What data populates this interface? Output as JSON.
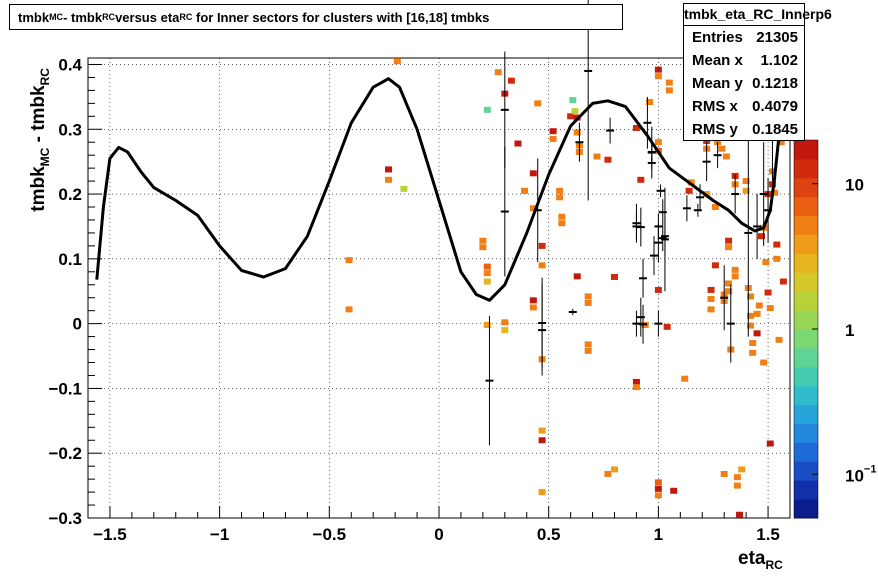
{
  "title_parts": [
    "tmbk",
    "MC",
    " - tmbk",
    "RC",
    " versus eta",
    "RC",
    " for Inner sectors for clusters with [16,18] tmbks"
  ],
  "stats": {
    "name": "tmbk_eta_RC_Innerp6",
    "rows": [
      {
        "label": "Entries",
        "value": "21305"
      },
      {
        "label": "Mean x",
        "value": "1.102"
      },
      {
        "label": "Mean y",
        "value": "0.1218"
      },
      {
        "label": "RMS x",
        "value": "0.4079"
      },
      {
        "label": "RMS y",
        "value": "0.1845"
      }
    ]
  },
  "chart_data": {
    "type": "heatmap",
    "title": "tmbk_MC - tmbk_RC versus eta_RC for Inner sectors for clusters with [16,18] tmbks",
    "xlabel": "eta_RC",
    "ylabel": "tmbk_MC - tmbk_RC",
    "xlim": [
      -1.6,
      1.6
    ],
    "ylim": [
      -0.3,
      0.41
    ],
    "x_ticks": [
      "−1.5",
      "−1",
      "−0.5",
      "0",
      "0.5",
      "1",
      "1.5"
    ],
    "x_tick_values": [
      -1.5,
      -1,
      -0.5,
      0,
      0.5,
      1,
      1.5
    ],
    "y_ticks": [
      "−0.3",
      "−0.2",
      "−0.1",
      "0",
      "0.1",
      "0.2",
      "0.3",
      "0.4"
    ],
    "y_tick_values": [
      -0.3,
      -0.2,
      -0.1,
      0,
      0.1,
      0.2,
      0.3,
      0.4
    ],
    "grid": true,
    "z_scale": "log",
    "z_range": [
      0.05,
      20
    ],
    "z_ticks": [
      {
        "label": "10",
        "value": 10
      },
      {
        "label": "1",
        "value": 1
      },
      {
        "label": "10",
        "sup": "−1",
        "value": 0.1
      }
    ],
    "palette": [
      "#0b1d8a",
      "#1230a8",
      "#1a4dc4",
      "#1e6ad6",
      "#2288dc",
      "#27a4d9",
      "#30bccb",
      "#44ccb0",
      "#5fd494",
      "#7cd873",
      "#9ad656",
      "#b8d23a",
      "#d4c82a",
      "#e6b41f",
      "#ef9c1a",
      "#f07f16",
      "#e96012",
      "#de4210",
      "#d02a0e",
      "#c0180c"
    ],
    "cells": [
      {
        "x": -0.41,
        "y": 0.098,
        "z": 6
      },
      {
        "x": -0.41,
        "y": 0.022,
        "z": 6
      },
      {
        "x": -0.23,
        "y": 0.238,
        "z": 18
      },
      {
        "x": -0.23,
        "y": 0.222,
        "z": 6
      },
      {
        "x": -0.19,
        "y": 0.405,
        "z": 6
      },
      {
        "x": -0.16,
        "y": 0.208,
        "z": 1.5
      },
      {
        "x": 0.2,
        "y": 0.128,
        "z": 6
      },
      {
        "x": 0.2,
        "y": 0.118,
        "z": 6
      },
      {
        "x": 0.22,
        "y": 0.088,
        "z": 8
      },
      {
        "x": 0.22,
        "y": 0.078,
        "z": 6
      },
      {
        "x": 0.22,
        "y": 0.065,
        "z": 3
      },
      {
        "x": 0.22,
        "y": -0.002,
        "z": 4
      },
      {
        "x": 0.22,
        "y": 0.33,
        "z": 0.6
      },
      {
        "x": 0.27,
        "y": 0.388,
        "z": 6
      },
      {
        "x": 0.3,
        "y": 0.002,
        "z": 6
      },
      {
        "x": 0.3,
        "y": -0.01,
        "z": 3
      },
      {
        "x": 0.3,
        "y": 0.355,
        "z": 15
      },
      {
        "x": 0.33,
        "y": 0.375,
        "z": 12
      },
      {
        "x": 0.36,
        "y": 0.278,
        "z": 20
      },
      {
        "x": 0.39,
        "y": 0.205,
        "z": 6
      },
      {
        "x": 0.43,
        "y": 0.232,
        "z": 15
      },
      {
        "x": 0.43,
        "y": 0.178,
        "z": 6
      },
      {
        "x": 0.43,
        "y": 0.036,
        "z": 18
      },
      {
        "x": 0.43,
        "y": 0.025,
        "z": 6
      },
      {
        "x": 0.45,
        "y": 0.34,
        "z": 6
      },
      {
        "x": 0.47,
        "y": 0.12,
        "z": 12
      },
      {
        "x": 0.47,
        "y": 0.09,
        "z": 6
      },
      {
        "x": 0.47,
        "y": -0.055,
        "z": 6
      },
      {
        "x": 0.47,
        "y": -0.18,
        "z": 15
      },
      {
        "x": 0.47,
        "y": -0.165,
        "z": 4
      },
      {
        "x": 0.47,
        "y": -0.26,
        "z": 4
      },
      {
        "x": 0.52,
        "y": 0.297,
        "z": 15
      },
      {
        "x": 0.52,
        "y": 0.285,
        "z": 6
      },
      {
        "x": 0.55,
        "y": 0.205,
        "z": 6
      },
      {
        "x": 0.55,
        "y": 0.195,
        "z": 6
      },
      {
        "x": 0.56,
        "y": 0.165,
        "z": 6
      },
      {
        "x": 0.56,
        "y": 0.155,
        "z": 6
      },
      {
        "x": 0.6,
        "y": 0.32,
        "z": 12
      },
      {
        "x": 0.61,
        "y": 0.345,
        "z": 0.6
      },
      {
        "x": 0.62,
        "y": 0.328,
        "z": 1.5
      },
      {
        "x": 0.63,
        "y": 0.295,
        "z": 6
      },
      {
        "x": 0.64,
        "y": 0.275,
        "z": 6
      },
      {
        "x": 0.64,
        "y": 0.265,
        "z": 6
      },
      {
        "x": 0.63,
        "y": 0.318,
        "z": 15
      },
      {
        "x": 0.63,
        "y": 0.073,
        "z": 18
      },
      {
        "x": 0.68,
        "y": 0.042,
        "z": 6
      },
      {
        "x": 0.68,
        "y": 0.032,
        "z": 6
      },
      {
        "x": 0.68,
        "y": -0.032,
        "z": 6
      },
      {
        "x": 0.68,
        "y": -0.042,
        "z": 6
      },
      {
        "x": 0.72,
        "y": 0.258,
        "z": 6
      },
      {
        "x": 0.77,
        "y": 0.253,
        "z": 12
      },
      {
        "x": 0.77,
        "y": -0.232,
        "z": 6
      },
      {
        "x": 0.8,
        "y": 0.072,
        "z": 12
      },
      {
        "x": 0.8,
        "y": -0.225,
        "z": 4
      },
      {
        "x": 0.9,
        "y": 0.302,
        "z": 12
      },
      {
        "x": 0.9,
        "y": -0.09,
        "z": 15
      },
      {
        "x": 0.9,
        "y": -0.098,
        "z": 6
      },
      {
        "x": 0.92,
        "y": 0.222,
        "z": 12
      },
      {
        "x": 0.94,
        "y": -0.002,
        "z": 6
      },
      {
        "x": 0.96,
        "y": 0.342,
        "z": 6
      },
      {
        "x": 1.0,
        "y": 0.392,
        "z": 15
      },
      {
        "x": 1.0,
        "y": 0.382,
        "z": 6
      },
      {
        "x": 1.0,
        "y": -0.255,
        "z": 20
      },
      {
        "x": 1.0,
        "y": -0.245,
        "z": 8
      },
      {
        "x": 1.0,
        "y": -0.265,
        "z": 6
      },
      {
        "x": 1.0,
        "y": 0.052,
        "z": 12
      },
      {
        "x": 1.0,
        "y": 0.267,
        "z": 8
      },
      {
        "x": 1.0,
        "y": 0.28,
        "z": 6
      },
      {
        "x": 1.04,
        "y": -0.005,
        "z": 12
      },
      {
        "x": 1.05,
        "y": 0.36,
        "z": 6
      },
      {
        "x": 1.05,
        "y": 0.372,
        "z": 6
      },
      {
        "x": 1.07,
        "y": -0.258,
        "z": 18
      },
      {
        "x": 1.12,
        "y": -0.085,
        "z": 6
      },
      {
        "x": 1.14,
        "y": 0.205,
        "z": 12
      },
      {
        "x": 1.15,
        "y": 0.218,
        "z": 6
      },
      {
        "x": 1.22,
        "y": 0.282,
        "z": 12
      },
      {
        "x": 1.22,
        "y": 0.27,
        "z": 6
      },
      {
        "x": 1.22,
        "y": 0.2,
        "z": 4
      },
      {
        "x": 1.24,
        "y": 0.052,
        "z": 12
      },
      {
        "x": 1.24,
        "y": 0.038,
        "z": 6
      },
      {
        "x": 1.24,
        "y": 0.022,
        "z": 6
      },
      {
        "x": 1.26,
        "y": 0.09,
        "z": 12
      },
      {
        "x": 1.26,
        "y": 0.18,
        "z": 6
      },
      {
        "x": 1.27,
        "y": 0.28,
        "z": 6
      },
      {
        "x": 1.29,
        "y": 0.27,
        "z": 6
      },
      {
        "x": 1.31,
        "y": 0.258,
        "z": 6
      },
      {
        "x": 1.3,
        "y": 0.045,
        "z": 6
      },
      {
        "x": 1.3,
        "y": 0.035,
        "z": 6
      },
      {
        "x": 1.3,
        "y": -0.232,
        "z": 6
      },
      {
        "x": 1.32,
        "y": 0.128,
        "z": 12
      },
      {
        "x": 1.32,
        "y": 0.118,
        "z": 6
      },
      {
        "x": 1.32,
        "y": 0.062,
        "z": 6
      },
      {
        "x": 1.32,
        "y": 0.05,
        "z": 6
      },
      {
        "x": 1.33,
        "y": -0.04,
        "z": 6
      },
      {
        "x": 1.35,
        "y": 0.228,
        "z": 12
      },
      {
        "x": 1.35,
        "y": 0.215,
        "z": 6
      },
      {
        "x": 1.35,
        "y": 0.083,
        "z": 6
      },
      {
        "x": 1.35,
        "y": 0.073,
        "z": 6
      },
      {
        "x": 1.36,
        "y": -0.25,
        "z": 6
      },
      {
        "x": 1.36,
        "y": -0.237,
        "z": 6
      },
      {
        "x": 1.37,
        "y": -0.295,
        "z": 18
      },
      {
        "x": 1.38,
        "y": -0.225,
        "z": 4
      },
      {
        "x": 1.4,
        "y": 0.22,
        "z": 6
      },
      {
        "x": 1.4,
        "y": 0.205,
        "z": 4
      },
      {
        "x": 1.41,
        "y": 0.055,
        "z": 6
      },
      {
        "x": 1.42,
        "y": 0.042,
        "z": 6
      },
      {
        "x": 1.42,
        "y": 0.012,
        "z": 6
      },
      {
        "x": 1.42,
        "y": -0.003,
        "z": 6
      },
      {
        "x": 1.43,
        "y": -0.03,
        "z": 6
      },
      {
        "x": 1.43,
        "y": -0.045,
        "z": 6
      },
      {
        "x": 1.45,
        "y": 0.015,
        "z": 6
      },
      {
        "x": 1.45,
        "y": -0.015,
        "z": 18
      },
      {
        "x": 1.46,
        "y": 0.028,
        "z": 6
      },
      {
        "x": 1.47,
        "y": 0.135,
        "z": 12
      },
      {
        "x": 1.48,
        "y": 0.148,
        "z": 6
      },
      {
        "x": 1.48,
        "y": -0.06,
        "z": 6
      },
      {
        "x": 1.49,
        "y": 0.095,
        "z": 6
      },
      {
        "x": 1.5,
        "y": 0.2,
        "z": 12
      },
      {
        "x": 1.5,
        "y": 0.048,
        "z": 12
      },
      {
        "x": 1.51,
        "y": 0.024,
        "z": 6
      },
      {
        "x": 1.51,
        "y": -0.185,
        "z": 18
      },
      {
        "x": 1.52,
        "y": 0.235,
        "z": 6
      },
      {
        "x": 1.52,
        "y": 0.215,
        "z": 12
      },
      {
        "x": 1.53,
        "y": 0.202,
        "z": 6
      },
      {
        "x": 1.54,
        "y": 0.122,
        "z": 12
      },
      {
        "x": 1.54,
        "y": 0.1,
        "z": 6
      },
      {
        "x": 1.55,
        "y": -0.025,
        "z": 6
      },
      {
        "x": 1.56,
        "y": 0.28,
        "z": 6
      },
      {
        "x": 1.57,
        "y": 0.065,
        "z": 12
      }
    ],
    "profile": [
      {
        "x": 0.23,
        "y": -0.088,
        "err": 0.1
      },
      {
        "x": 0.3,
        "y": 0.173,
        "err": 0.1
      },
      {
        "x": 0.3,
        "y": 0.33,
        "err": 0.09
      },
      {
        "x": 0.45,
        "y": 0.175,
        "err": 0.08
      },
      {
        "x": 0.47,
        "y": 0.001,
        "err": 0.07
      },
      {
        "x": 0.47,
        "y": -0.01,
        "err": 0.07
      },
      {
        "x": 0.61,
        "y": 0.018,
        "err": 0.005
      },
      {
        "x": 0.64,
        "y": 0.28,
        "err": 0.03
      },
      {
        "x": 0.68,
        "y": 0.39,
        "err": 0.2
      },
      {
        "x": 0.78,
        "y": 0.298,
        "err": 0.02
      },
      {
        "x": 0.92,
        "y": 0.01,
        "err": 0.03
      },
      {
        "x": 0.93,
        "y": -0.001,
        "err": 0.03
      },
      {
        "x": 0.95,
        "y": 0.31,
        "err": 0.04
      },
      {
        "x": 0.97,
        "y": 0.264,
        "err": 0.04
      },
      {
        "x": 0.97,
        "y": 0.265,
        "err": 0.015
      },
      {
        "x": 0.9,
        "y": 0.15,
        "err": 0.02
      },
      {
        "x": 0.9,
        "y": 0.0,
        "err": 0.02
      },
      {
        "x": 1.0,
        "y": 0.15,
        "err": 0.02
      },
      {
        "x": 1.0,
        "y": 0.0,
        "err": 0.02
      },
      {
        "x": 1.03,
        "y": 0.13,
        "err": 0.08
      },
      {
        "x": 1.03,
        "y": 0.135,
        "err": 0.03
      },
      {
        "x": 1.0,
        "y": 0.125,
        "err": 0.03
      },
      {
        "x": 0.9,
        "y": 0.155,
        "err": 0.03
      },
      {
        "x": 0.93,
        "y": 0.07,
        "err": 0.03
      },
      {
        "x": 0.98,
        "y": 0.105,
        "err": 0.03
      },
      {
        "x": 0.92,
        "y": 0.149,
        "err": 0.03
      },
      {
        "x": 1.02,
        "y": 0.172,
        "err": 0.02
      },
      {
        "x": 1.02,
        "y": 0.132,
        "err": 0.02
      },
      {
        "x": 1.01,
        "y": 0.205,
        "err": 0.01
      },
      {
        "x": 0.97,
        "y": 0.248,
        "err": 0.01
      },
      {
        "x": 1.13,
        "y": 0.178,
        "err": 0.02
      },
      {
        "x": 1.18,
        "y": 0.175,
        "err": 0.01
      },
      {
        "x": 1.19,
        "y": 0.195,
        "err": 0.02
      },
      {
        "x": 1.22,
        "y": 0.25,
        "err": 0.03
      },
      {
        "x": 1.27,
        "y": 0.26,
        "err": 0.02
      },
      {
        "x": 1.3,
        "y": 0.04,
        "err": 0.05
      },
      {
        "x": 1.33,
        "y": 0.0,
        "err": 0.06
      },
      {
        "x": 1.35,
        "y": 0.2,
        "err": 0.03
      },
      {
        "x": 1.41,
        "y": 0.14,
        "err": 0.16
      },
      {
        "x": 1.45,
        "y": 0.15,
        "err": 0.05
      },
      {
        "x": 1.48,
        "y": 0.2,
        "err": 0.08
      },
      {
        "x": 1.5,
        "y": 0.175,
        "err": 0.05
      },
      {
        "x": 1.52,
        "y": 0.35,
        "err": 0.13
      }
    ],
    "fit_curve": [
      [
        -1.56,
        0.068
      ],
      [
        -1.53,
        0.18
      ],
      [
        -1.5,
        0.255
      ],
      [
        -1.46,
        0.272
      ],
      [
        -1.42,
        0.265
      ],
      [
        -1.36,
        0.235
      ],
      [
        -1.3,
        0.21
      ],
      [
        -1.2,
        0.19
      ],
      [
        -1.1,
        0.167
      ],
      [
        -1.0,
        0.12
      ],
      [
        -0.9,
        0.082
      ],
      [
        -0.8,
        0.072
      ],
      [
        -0.7,
        0.085
      ],
      [
        -0.6,
        0.135
      ],
      [
        -0.5,
        0.22
      ],
      [
        -0.4,
        0.31
      ],
      [
        -0.3,
        0.365
      ],
      [
        -0.23,
        0.378
      ],
      [
        -0.18,
        0.365
      ],
      [
        -0.1,
        0.3
      ],
      [
        0.0,
        0.19
      ],
      [
        0.1,
        0.08
      ],
      [
        0.17,
        0.045
      ],
      [
        0.23,
        0.036
      ],
      [
        0.3,
        0.06
      ],
      [
        0.4,
        0.14
      ],
      [
        0.5,
        0.23
      ],
      [
        0.6,
        0.305
      ],
      [
        0.7,
        0.34
      ],
      [
        0.77,
        0.344
      ],
      [
        0.85,
        0.335
      ],
      [
        0.95,
        0.29
      ],
      [
        1.05,
        0.24
      ],
      [
        1.15,
        0.215
      ],
      [
        1.25,
        0.19
      ],
      [
        1.32,
        0.175
      ],
      [
        1.38,
        0.155
      ],
      [
        1.44,
        0.143
      ],
      [
        1.48,
        0.148
      ],
      [
        1.51,
        0.175
      ],
      [
        1.53,
        0.225
      ],
      [
        1.55,
        0.29
      ],
      [
        1.56,
        0.35
      ]
    ]
  }
}
